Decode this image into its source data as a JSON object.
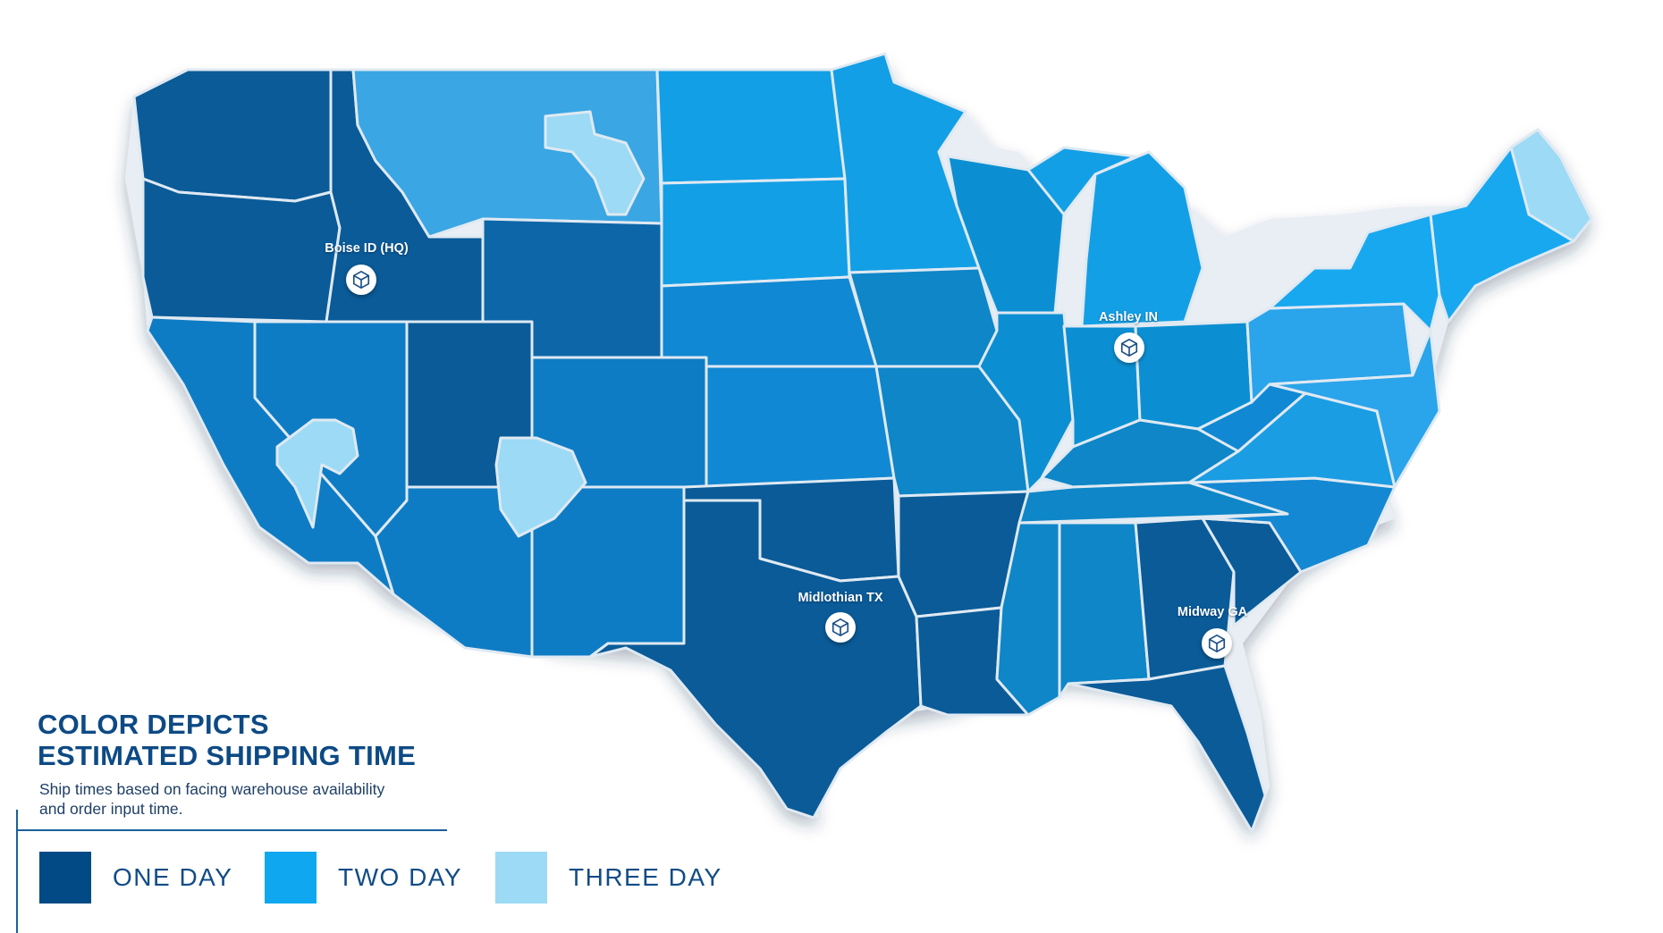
{
  "legend": {
    "title_line1": "COLOR DEPICTS",
    "title_line2": "ESTIMATED SHIPPING TIME",
    "subtitle_line1": "Ship times based on facing warehouse availability",
    "subtitle_line2": "and order input time.",
    "items": [
      {
        "label": "ONE DAY",
        "color": "#024a86"
      },
      {
        "label": "TWO DAY",
        "color": "#0fa8f0"
      },
      {
        "label": "THREE DAY",
        "color": "#9cdaf5"
      }
    ]
  },
  "warehouses": [
    {
      "label": "Boise ID (HQ)",
      "icon": "package-box-icon"
    },
    {
      "label": "Ashley IN",
      "icon": "package-box-icon"
    },
    {
      "label": "Midlothian TX",
      "icon": "package-box-icon"
    },
    {
      "label": "Midway GA",
      "icon": "package-box-icon"
    }
  ],
  "map": {
    "region": "Contiguous United States",
    "shading": "estimated shipping time by zone"
  }
}
